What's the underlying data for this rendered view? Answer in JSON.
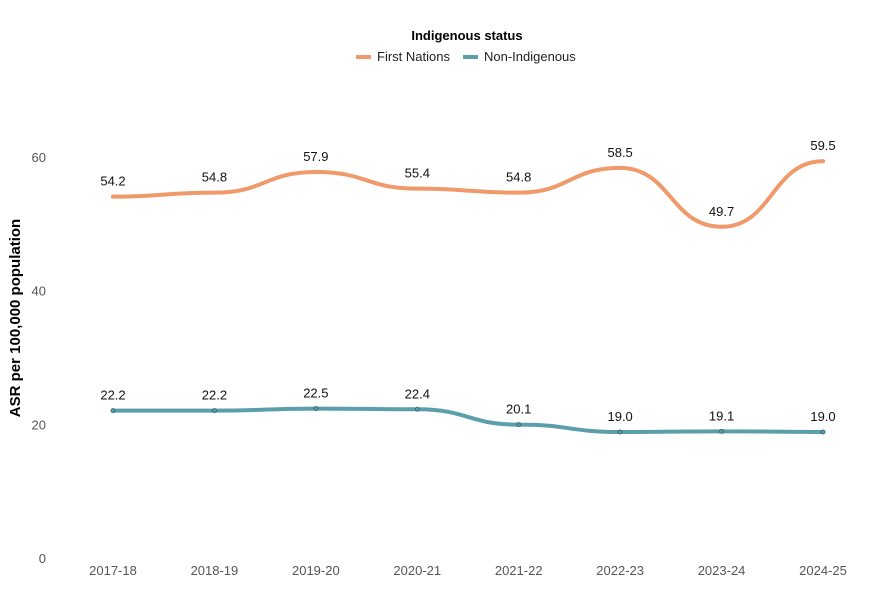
{
  "chart_data": {
    "type": "line",
    "legend": {
      "title": "Indigenous status",
      "placement": "top-center"
    },
    "xlabel": "",
    "ylabel": "ASR per 100,000 population",
    "categories": [
      "2017-18",
      "2018-19",
      "2019-20",
      "2020-21",
      "2021-22",
      "2022-23",
      "2023-24",
      "2024-25"
    ],
    "ylim": [
      0,
      65
    ],
    "yticks": [
      0,
      20,
      40,
      60
    ],
    "grid": false,
    "series": [
      {
        "name": "First Nations",
        "color": "#f0996a",
        "values": [
          54.2,
          54.8,
          57.9,
          55.4,
          54.8,
          58.5,
          49.7,
          59.5
        ],
        "labels": [
          "54.2",
          "54.8",
          "57.9",
          "55.4",
          "54.8",
          "58.5",
          "49.7",
          "59.5"
        ]
      },
      {
        "name": "Non-Indigenous",
        "color": "#5b9fad",
        "values": [
          22.2,
          22.2,
          22.5,
          22.4,
          20.1,
          19.0,
          19.1,
          19.0
        ],
        "labels": [
          "22.2",
          "22.2",
          "22.5",
          "22.4",
          "20.1",
          "19.0",
          "19.1",
          "19.0"
        ]
      }
    ]
  }
}
